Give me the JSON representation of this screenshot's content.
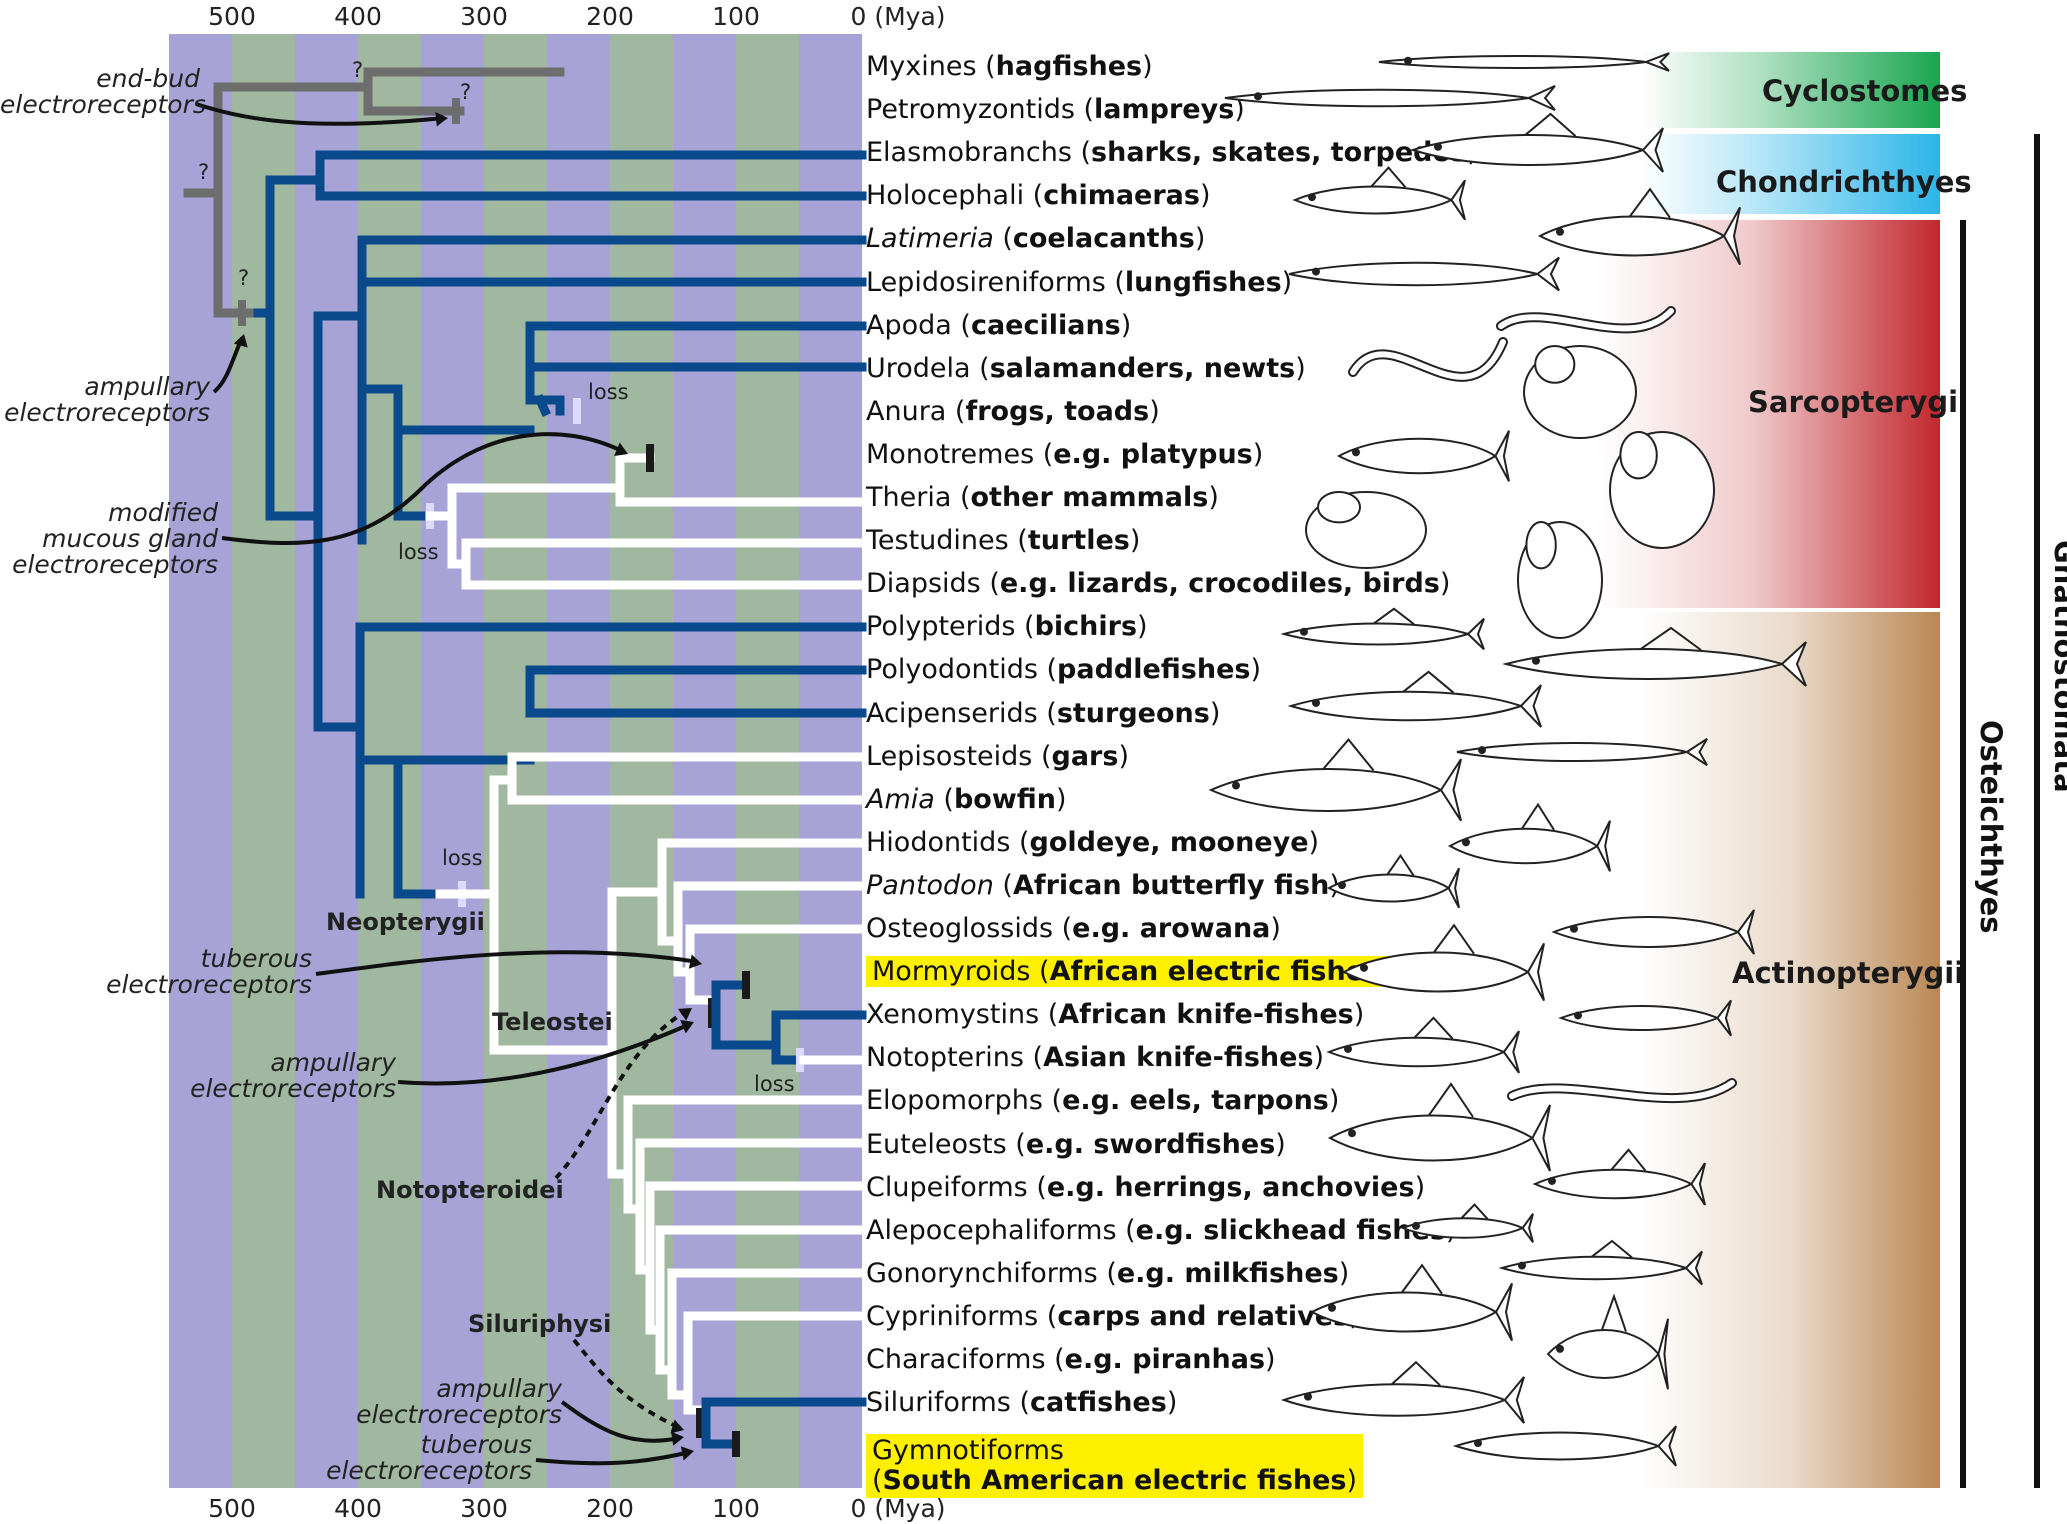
{
  "axis": {
    "ticks": [
      "500",
      "400",
      "300",
      "200",
      "100",
      "0 (Mya)"
    ],
    "tick_values": [
      500,
      400,
      300,
      200,
      100,
      0
    ]
  },
  "taxa": [
    {
      "plain": "Myxines (",
      "bold": "hagfishes",
      "tail": ")"
    },
    {
      "plain": "Petromyzontids (",
      "bold": "lampreys",
      "tail": ")"
    },
    {
      "plain": "Elasmobranchs (",
      "bold": "sharks, skates, torpedos",
      "tail": ")"
    },
    {
      "plain": "Holocephali (",
      "bold": "chimaeras",
      "tail": ")"
    },
    {
      "ital": "Latimeria",
      "plain": " (",
      "bold": "coelacanths",
      "tail": ")"
    },
    {
      "plain": "Lepidosireniforms (",
      "bold": "lungfishes",
      "tail": ")"
    },
    {
      "plain": "Apoda (",
      "bold": "caecilians",
      "tail": ")"
    },
    {
      "plain": "Urodela (",
      "bold": "salamanders, newts",
      "tail": ")"
    },
    {
      "plain": "Anura (",
      "bold": "frogs, toads",
      "tail": ")"
    },
    {
      "plain": "Monotremes (",
      "bold": "e.g. platypus",
      "tail": ")"
    },
    {
      "plain": "Theria (",
      "bold": "other mammals",
      "tail": ")"
    },
    {
      "plain": "Testudines (",
      "bold": "turtles",
      "tail": ")"
    },
    {
      "plain": "Diapsids (",
      "bold": "e.g. lizards, crocodiles, birds",
      "tail": ")"
    },
    {
      "plain": "Polypterids (",
      "bold": "bichirs",
      "tail": ")"
    },
    {
      "plain": "Polyodontids (",
      "bold": "paddlefishes",
      "tail": ")"
    },
    {
      "plain": "Acipenserids (",
      "bold": "sturgeons",
      "tail": ")"
    },
    {
      "plain": "Lepisosteids (",
      "bold": "gars",
      "tail": ")"
    },
    {
      "ital": "Amia",
      "plain": " (",
      "bold": "bowfin",
      "tail": ")"
    },
    {
      "plain": "Hiodontids (",
      "bold": "goldeye, mooneye",
      "tail": ")"
    },
    {
      "ital": "Pantodon",
      "plain": " (",
      "bold": "African butterfly fish",
      "tail": ")"
    },
    {
      "plain": "Osteoglossids (",
      "bold": "e.g. arowana",
      "tail": ")"
    },
    {
      "plain": "Mormyroids (",
      "bold": "African electric fishes",
      "tail": ")",
      "highlight": true
    },
    {
      "plain": "Xenomystins (",
      "bold": "African knife-fishes",
      "tail": ")"
    },
    {
      "plain": "Notopterins (",
      "bold": "Asian knife-fishes",
      "tail": ")"
    },
    {
      "plain": "Elopomorphs (",
      "bold": "e.g. eels, tarpons",
      "tail": ")"
    },
    {
      "plain": "Euteleosts (",
      "bold": "e.g. swordfishes",
      "tail": ")"
    },
    {
      "plain": "Clupeiforms (",
      "bold": "e.g. herrings, anchovies",
      "tail": ")"
    },
    {
      "plain": "Alepocephaliforms (",
      "bold": "e.g. slickhead fishes",
      "tail": ")"
    },
    {
      "plain": "Gonorynchiforms (",
      "bold": "e.g. milkfishes",
      "tail": ")"
    },
    {
      "plain": "Cypriniforms (",
      "bold": "carps and relatives",
      "tail": ")"
    },
    {
      "plain": "Characiforms (",
      "bold": "e.g. piranhas",
      "tail": ")"
    },
    {
      "plain": "Siluriforms (",
      "bold": "catfishes",
      "tail": ")"
    }
  ],
  "gymnotiforms": {
    "line1": "Gymnotiforms",
    "line2_plain": "(",
    "line2_bold": "South American electric fishes",
    "line2_tail": ")"
  },
  "notes": {
    "end_bud": "end-bud\nelectroreceptors",
    "ampullary_top": "ampullary\nelectroreceptors",
    "mucous": "modified\nmucous gland\nelectroreceptors",
    "tuberous_mid": "tuberous\nelectroreceptors",
    "ampullary_mid": "ampullary\nelectroreceptors",
    "ampullary_low": "ampullary\nelectroreceptors",
    "tuberous_low": "tuberous\nelectroreceptors"
  },
  "clades": {
    "neopterygii": "Neopterygii",
    "teleostei": "Teleostei",
    "notopteroidei": "Notopteroidei",
    "siluriphysi": "Siluriphysi"
  },
  "small_marks": {
    "q": "?",
    "loss": "loss"
  },
  "groups": {
    "cyclostomes": "Cyclostomes",
    "chondrichthyes": "Chondrichthyes",
    "sarcopterygii": "Sarcopterygii",
    "actinopterygii": "Actinopterygii",
    "osteichthyes": "Osteichthyes",
    "gnathostomata": "Gnathostomata"
  },
  "colors": {
    "purple_band": "#a7a3d6",
    "green_band": "#9fb89f",
    "electro_lineage": "#0a4a8c",
    "no_electro": "#ffffff",
    "uncertain": "#6d6d6d",
    "orange": "#f7941d",
    "highlight": "#fff200",
    "cyclostomes": "#1aa650",
    "chondrichthyes": "#2bb5e8",
    "sarcopterygii": "#c1272d",
    "actinopterygii": "#b98753"
  },
  "fish_icons": [
    "hagfish-icon",
    "lamprey-icon",
    "shark-icon",
    "chimaera-icon",
    "coelacanth-icon",
    "lungfish-icon",
    "caecilian-icon",
    "salamander-icon",
    "frog-icon",
    "platypus-icon",
    "lion-icon",
    "turtle-icon",
    "parrot-icon",
    "bichir-icon",
    "paddlefish-icon",
    "sturgeon-icon",
    "gar-icon",
    "bowfin-icon",
    "mooneye-icon",
    "butterflyfish-icon",
    "arowana-icon",
    "mormyrid-icon",
    "knifefish-icon",
    "asian-knifefish-icon",
    "eel-icon",
    "swordfish-icon",
    "herring-icon",
    "slickhead-icon",
    "milkfish-icon",
    "carp-icon",
    "piranha-icon",
    "catfish-icon",
    "gymnotiform-icon"
  ]
}
